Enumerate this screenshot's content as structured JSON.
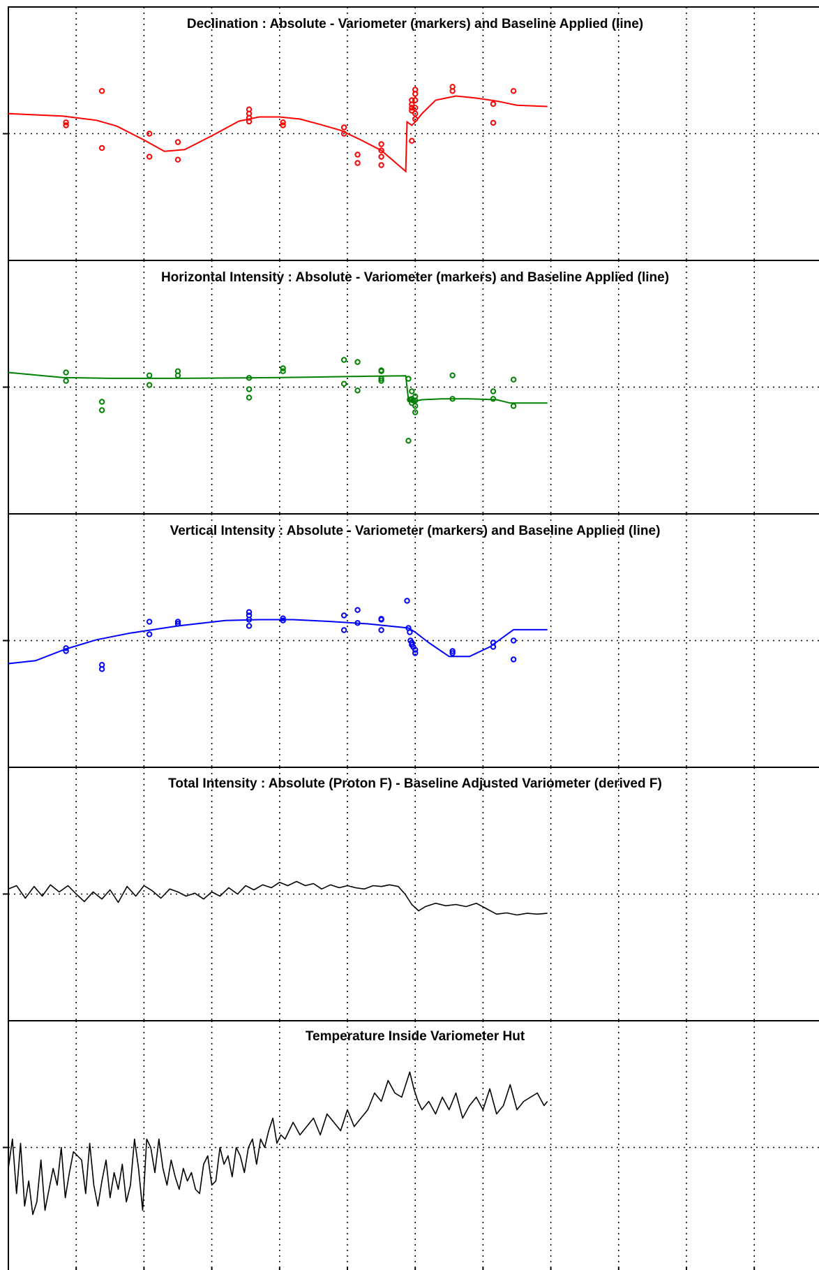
{
  "chart_data": [
    {
      "type": "scatter",
      "title": "Declination : Absolute - Variometer (markers) and Baseline Applied (line)",
      "color": "#ff0000",
      "xlim": [
        0,
        12
      ],
      "ylim": [
        -3,
        3
      ],
      "grid": true,
      "markers": {
        "x": [
          0.85,
          0.85,
          1.38,
          1.38,
          2.08,
          2.08,
          2.5,
          2.5,
          3.55,
          3.55,
          3.55,
          3.55,
          4.05,
          4.05,
          4.95,
          4.95,
          5.15,
          5.15,
          5.5,
          5.5,
          5.5,
          5.5,
          5.95,
          5.95,
          5.95,
          5.95,
          5.95,
          6.0,
          6.0,
          6.0,
          6.0,
          6.0,
          6.0,
          6.55,
          6.55,
          7.15,
          7.15,
          7.45
        ],
        "y": [
          0.27,
          0.2,
          1.02,
          -0.34,
          -0.55,
          0.0,
          -0.2,
          -0.62,
          0.58,
          0.48,
          0.38,
          0.29,
          0.27,
          0.2,
          0.15,
          0.0,
          -0.5,
          -0.7,
          -0.25,
          -0.4,
          -0.55,
          -0.75,
          -0.17,
          0.8,
          0.7,
          0.62,
          0.55,
          1.05,
          0.95,
          0.8,
          0.62,
          0.48,
          0.35,
          1.12,
          1.02,
          0.71,
          0.26,
          1.02
        ]
      },
      "line": {
        "x": [
          0,
          0.8,
          1.3,
          1.6,
          2.0,
          2.3,
          2.6,
          3.0,
          3.4,
          3.7,
          4.0,
          4.3,
          4.6,
          4.9,
          5.2,
          5.5,
          5.86,
          5.88,
          5.95,
          6.0,
          6.1,
          6.3,
          6.6,
          6.9,
          7.2,
          7.5,
          7.95
        ],
        "y": [
          0.48,
          0.42,
          0.32,
          0.18,
          -0.15,
          -0.42,
          -0.38,
          -0.05,
          0.3,
          0.4,
          0.4,
          0.35,
          0.22,
          0.08,
          -0.15,
          -0.4,
          -0.9,
          0.28,
          0.2,
          0.28,
          0.48,
          0.8,
          0.9,
          0.85,
          0.78,
          0.68,
          0.65
        ]
      }
    },
    {
      "type": "scatter",
      "title": "Horizontal Intensity : Absolute - Variometer (markers) and Baseline Applied (line)",
      "color": "#008000",
      "xlim": [
        0,
        12
      ],
      "ylim": [
        -3,
        3
      ],
      "grid": true,
      "markers": {
        "x": [
          0.85,
          0.85,
          1.38,
          1.38,
          2.08,
          2.08,
          2.5,
          2.5,
          3.55,
          3.55,
          3.55,
          4.05,
          4.05,
          4.95,
          4.95,
          5.15,
          5.15,
          5.5,
          5.5,
          5.5,
          5.5,
          5.9,
          5.9,
          5.92,
          5.95,
          5.95,
          5.95,
          5.97,
          6.0,
          6.0,
          6.0,
          6.0,
          6.55,
          6.55,
          7.15,
          7.15,
          7.45,
          7.45
        ],
        "y": [
          0.35,
          0.15,
          -0.35,
          -0.55,
          0.28,
          0.05,
          0.38,
          0.28,
          0.22,
          -0.05,
          -0.25,
          0.45,
          0.38,
          0.65,
          0.08,
          0.6,
          -0.08,
          0.4,
          0.38,
          0.2,
          0.15,
          0.2,
          -1.28,
          -0.3,
          -0.28,
          -0.1,
          -0.38,
          -0.32,
          -0.22,
          -0.45,
          -0.6,
          -0.32,
          0.28,
          -0.28,
          -0.1,
          -0.28,
          0.18,
          -0.45
        ]
      },
      "line": {
        "x": [
          0,
          0.8,
          1.5,
          2.5,
          3.5,
          4.5,
          5.3,
          5.86,
          5.9,
          5.95,
          6.1,
          6.4,
          6.8,
          7.2,
          7.4,
          7.7,
          7.95
        ],
        "y": [
          0.35,
          0.23,
          0.21,
          0.21,
          0.22,
          0.24,
          0.26,
          0.27,
          -0.3,
          -0.35,
          -0.3,
          -0.28,
          -0.28,
          -0.3,
          -0.38,
          -0.38,
          -0.38
        ]
      }
    },
    {
      "type": "scatter",
      "title": "Vertical Intensity : Absolute - Variometer (markers) and Baseline Applied (line)",
      "color": "#0000ff",
      "xlim": [
        0,
        12
      ],
      "ylim": [
        -3,
        3
      ],
      "grid": true,
      "markers": {
        "x": [
          0.85,
          0.85,
          1.38,
          1.38,
          2.08,
          2.08,
          2.5,
          2.5,
          3.55,
          3.55,
          3.55,
          3.55,
          4.05,
          4.05,
          4.95,
          4.95,
          5.15,
          5.15,
          5.5,
          5.5,
          5.5,
          5.88,
          5.9,
          5.92,
          5.93,
          5.95,
          5.95,
          5.97,
          6.0,
          6.0,
          6.55,
          6.55,
          7.15,
          7.15,
          7.45,
          7.45
        ],
        "y": [
          -0.18,
          -0.25,
          -0.58,
          -0.68,
          0.45,
          0.15,
          0.45,
          0.4,
          0.68,
          0.6,
          0.5,
          0.35,
          0.53,
          0.48,
          0.6,
          0.25,
          0.73,
          0.42,
          0.52,
          0.5,
          0.25,
          0.95,
          0.3,
          0.2,
          0.0,
          -0.05,
          -0.1,
          -0.15,
          -0.22,
          -0.3,
          -0.25,
          -0.3,
          -0.05,
          -0.15,
          0.0,
          -0.45
        ]
      },
      "line": {
        "x": [
          0,
          0.4,
          0.85,
          1.3,
          1.8,
          2.5,
          3.2,
          3.7,
          4.2,
          4.7,
          5.3,
          5.9,
          6.0,
          6.2,
          6.5,
          6.8,
          7.1,
          7.45,
          7.95
        ],
        "y": [
          -0.55,
          -0.48,
          -0.2,
          0.02,
          0.18,
          0.35,
          0.48,
          0.5,
          0.5,
          0.46,
          0.4,
          0.3,
          0.2,
          -0.05,
          -0.38,
          -0.38,
          -0.15,
          0.26,
          0.26
        ]
      }
    },
    {
      "type": "line",
      "title": "Total Intensity : Absolute (Proton F) - Baseline Adjusted Variometer (derived F)",
      "color": "#000000",
      "xlim": [
        0,
        12
      ],
      "ylim": [
        -3,
        3
      ],
      "grid": true,
      "series": [
        {
          "x": [
            0,
            0.12,
            0.25,
            0.38,
            0.5,
            0.62,
            0.75,
            0.88,
            1.0,
            1.12,
            1.25,
            1.38,
            1.5,
            1.62,
            1.75,
            1.88,
            2.0,
            2.12,
            2.25,
            2.38,
            2.5,
            2.62,
            2.75,
            2.88,
            3.0,
            3.12,
            3.25,
            3.38,
            3.5,
            3.62,
            3.75,
            3.88,
            4.0,
            4.12,
            4.25,
            4.38,
            4.5,
            4.62,
            4.75,
            4.88,
            5.0,
            5.12,
            5.25,
            5.38,
            5.5,
            5.62,
            5.75,
            5.85,
            5.95,
            6.05,
            6.15,
            6.3,
            6.45,
            6.6,
            6.75,
            6.9,
            7.05,
            7.2,
            7.35,
            7.5,
            7.65,
            7.8,
            7.95
          ],
          "y": [
            0.12,
            0.2,
            -0.1,
            0.18,
            -0.05,
            0.22,
            0.05,
            0.2,
            0.0,
            -0.18,
            0.05,
            -0.12,
            0.1,
            -0.2,
            0.18,
            -0.05,
            0.2,
            0.08,
            -0.1,
            0.12,
            0.05,
            -0.05,
            0.02,
            -0.12,
            0.05,
            -0.05,
            0.15,
            0.0,
            0.2,
            0.1,
            0.22,
            0.15,
            0.28,
            0.2,
            0.3,
            0.2,
            0.25,
            0.12,
            0.22,
            0.15,
            0.2,
            0.15,
            0.12,
            0.2,
            0.18,
            0.22,
            0.18,
            0.0,
            -0.25,
            -0.4,
            -0.3,
            -0.22,
            -0.28,
            -0.25,
            -0.3,
            -0.22,
            -0.35,
            -0.48,
            -0.45,
            -0.5,
            -0.46,
            -0.48,
            -0.46
          ]
        }
      ]
    },
    {
      "type": "line",
      "title": "Temperature Inside Variometer Hut",
      "color": "#000000",
      "xlim": [
        0,
        12
      ],
      "ylim": [
        -3,
        3
      ],
      "grid": true,
      "series": [
        {
          "x": [
            0,
            0.06,
            0.12,
            0.18,
            0.24,
            0.3,
            0.36,
            0.42,
            0.48,
            0.54,
            0.6,
            0.66,
            0.72,
            0.78,
            0.84,
            0.9,
            0.96,
            1.02,
            1.08,
            1.14,
            1.2,
            1.26,
            1.32,
            1.38,
            1.44,
            1.5,
            1.56,
            1.62,
            1.68,
            1.74,
            1.8,
            1.86,
            1.92,
            1.98,
            2.04,
            2.1,
            2.16,
            2.22,
            2.28,
            2.34,
            2.4,
            2.46,
            2.52,
            2.58,
            2.64,
            2.7,
            2.76,
            2.82,
            2.88,
            2.94,
            3.0,
            3.06,
            3.12,
            3.18,
            3.24,
            3.3,
            3.36,
            3.42,
            3.48,
            3.54,
            3.6,
            3.66,
            3.72,
            3.78,
            3.84,
            3.9,
            3.96,
            4.02,
            4.08,
            4.14,
            4.2,
            4.3,
            4.4,
            4.5,
            4.6,
            4.7,
            4.8,
            4.9,
            5.0,
            5.1,
            5.2,
            5.3,
            5.4,
            5.5,
            5.6,
            5.7,
            5.8,
            5.86,
            5.92,
            5.98,
            6.04,
            6.1,
            6.2,
            6.3,
            6.4,
            6.5,
            6.6,
            6.7,
            6.8,
            6.9,
            7.0,
            7.1,
            7.2,
            7.3,
            7.4,
            7.5,
            7.6,
            7.7,
            7.8,
            7.9,
            7.95
          ],
          "y": [
            -0.5,
            0.2,
            -1.1,
            0.1,
            -1.4,
            -0.8,
            -1.6,
            -1.3,
            -0.3,
            -1.5,
            -1.0,
            -0.5,
            -0.9,
            0.0,
            -1.2,
            -0.6,
            -0.1,
            -0.2,
            -0.3,
            -1.1,
            0.1,
            -0.9,
            -1.4,
            -0.8,
            -0.3,
            -1.2,
            -0.6,
            -1.0,
            -0.4,
            -1.3,
            -0.9,
            0.2,
            -0.5,
            -1.5,
            0.2,
            0.0,
            -0.6,
            0.2,
            -0.5,
            -0.9,
            -0.3,
            -0.7,
            -1.0,
            -0.5,
            -0.8,
            -0.6,
            -1.0,
            -1.1,
            -0.4,
            -0.2,
            -0.9,
            -0.8,
            0.0,
            -0.4,
            -0.2,
            -0.7,
            0.0,
            -0.2,
            -0.6,
            0.0,
            0.2,
            -0.4,
            0.2,
            0.0,
            0.4,
            0.7,
            0.1,
            0.3,
            0.2,
            0.4,
            0.6,
            0.3,
            0.5,
            0.7,
            0.3,
            0.8,
            0.6,
            0.4,
            0.9,
            0.5,
            0.7,
            0.9,
            1.3,
            1.1,
            1.6,
            1.3,
            1.2,
            1.5,
            1.8,
            1.4,
            1.1,
            0.9,
            1.1,
            0.8,
            1.2,
            0.9,
            1.3,
            0.7,
            1.0,
            1.2,
            0.9,
            1.4,
            0.8,
            1.0,
            1.5,
            0.9,
            1.1,
            1.2,
            1.3,
            1.0,
            1.1
          ]
        }
      ]
    }
  ]
}
